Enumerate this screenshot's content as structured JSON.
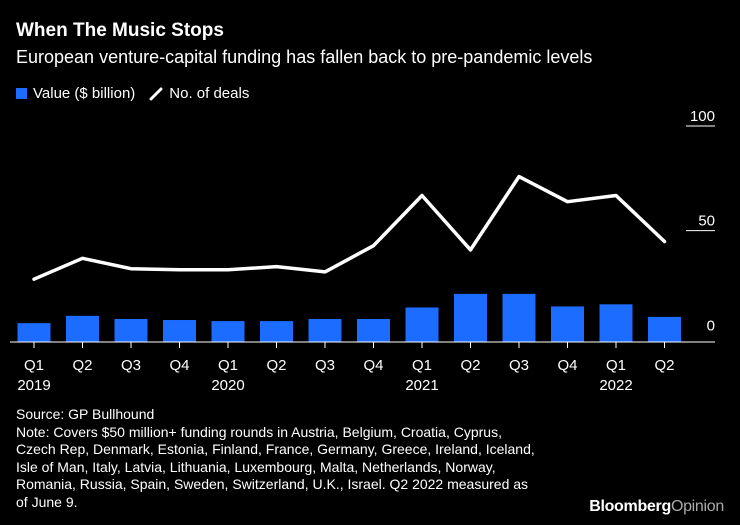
{
  "header": {
    "title": "When The Music Stops",
    "subtitle": "European venture-capital funding has fallen back to pre-pandemic levels"
  },
  "legend": {
    "bar_label": "Value ($ billion)",
    "line_label": "No. of deals"
  },
  "colors": {
    "bar": "#1c6cff",
    "line": "#ffffff",
    "background": "#000000"
  },
  "chart_data": {
    "type": "bar",
    "title": "When The Music Stops",
    "subtitle": "European venture-capital funding has fallen back to pre-pandemic levels",
    "categories": [
      "Q1",
      "Q2",
      "Q3",
      "Q4",
      "Q1",
      "Q2",
      "Q3",
      "Q4",
      "Q1",
      "Q2",
      "Q3",
      "Q4",
      "Q1",
      "Q2"
    ],
    "year_labels": [
      {
        "index": 0,
        "label": "2019"
      },
      {
        "index": 4,
        "label": "2020"
      },
      {
        "index": 8,
        "label": "2021"
      },
      {
        "index": 12,
        "label": "2022"
      }
    ],
    "series": [
      {
        "name": "Value ($ billion)",
        "type": "bar",
        "values": [
          2,
          5.5,
          4,
          3.5,
          3,
          3,
          4,
          4,
          9.5,
          16,
          16,
          10,
          11,
          5
        ]
      },
      {
        "name": "No. of deals",
        "type": "line",
        "values": [
          23,
          33,
          28,
          27.5,
          27.5,
          29,
          26.5,
          39,
          63,
          37,
          72,
          60,
          63,
          41
        ]
      }
    ],
    "y_ticks": [
      0,
      50,
      100
    ],
    "ylim": [
      -7,
      100
    ],
    "grid": false,
    "legend_position": "top-left"
  },
  "footer": {
    "source": "Source: GP Bullhound",
    "note_lines": [
      "Note: Covers $50 million+ funding rounds in Austria, Belgium, Croatia, Cyprus,",
      "Czech Rep, Denmark, Estonia, Finland, France, Germany, Greece, Ireland, Iceland,",
      "Isle of Man, Italy, Latvia, Lithuania, Luxembourg, Malta, Netherlands, Norway,",
      "Romania, Russia, Spain, Sweden, Switzerland, U.K., Israel. Q2 2022 measured as",
      "of June 9."
    ]
  },
  "brand": {
    "part1": "Bloomberg",
    "part2": "Opinion"
  }
}
